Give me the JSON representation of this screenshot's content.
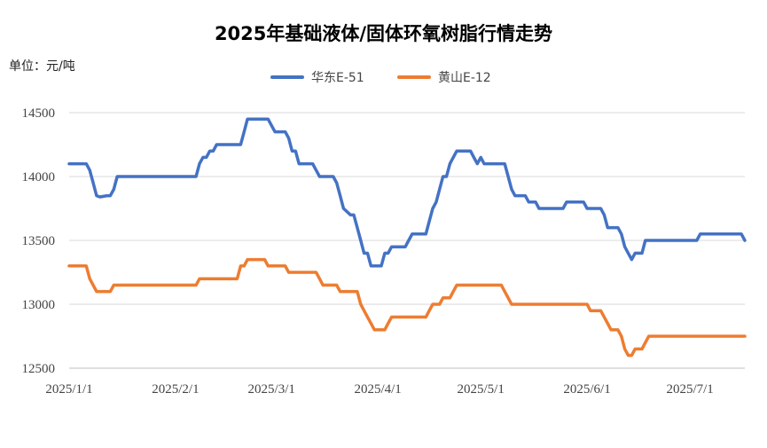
{
  "chart_data": {
    "type": "line",
    "title": "2025年基础液体/固体环氧树脂行情走势",
    "unit_label": "单位：元/吨",
    "ylim": [
      12500,
      14500
    ],
    "yticks": [
      12500,
      13000,
      13500,
      14000,
      14500
    ],
    "xlim": [
      "2025-01-01",
      "2025-07-17"
    ],
    "xticks": [
      "2025/1/1",
      "2025/2/1",
      "2025/3/1",
      "2025/4/1",
      "2025/5/1",
      "2025/6/1",
      "2025/7/1"
    ],
    "xtick_dates": [
      "2025-01-01",
      "2025-02-01",
      "2025-03-01",
      "2025-04-01",
      "2025-05-01",
      "2025-06-01",
      "2025-07-01"
    ],
    "grid": "horizontal",
    "legend_position": "top",
    "series": [
      {
        "name": "华东E-51",
        "color": "#4472C4",
        "points": [
          [
            "2025-01-01",
            14100
          ],
          [
            "2025-01-06",
            14100
          ],
          [
            "2025-01-07",
            14050
          ],
          [
            "2025-01-08",
            13950
          ],
          [
            "2025-01-09",
            13850
          ],
          [
            "2025-01-10",
            13840
          ],
          [
            "2025-01-12",
            13850
          ],
          [
            "2025-01-13",
            13850
          ],
          [
            "2025-01-14",
            13900
          ],
          [
            "2025-01-15",
            14000
          ],
          [
            "2025-01-20",
            14000
          ],
          [
            "2025-02-01",
            14000
          ],
          [
            "2025-02-06",
            14000
          ],
          [
            "2025-02-07",
            14000
          ],
          [
            "2025-02-08",
            14100
          ],
          [
            "2025-02-09",
            14150
          ],
          [
            "2025-02-10",
            14150
          ],
          [
            "2025-02-11",
            14200
          ],
          [
            "2025-02-12",
            14200
          ],
          [
            "2025-02-13",
            14250
          ],
          [
            "2025-02-20",
            14250
          ],
          [
            "2025-02-21",
            14350
          ],
          [
            "2025-02-22",
            14450
          ],
          [
            "2025-02-28",
            14450
          ],
          [
            "2025-03-01",
            14400
          ],
          [
            "2025-03-02",
            14350
          ],
          [
            "2025-03-05",
            14350
          ],
          [
            "2025-03-06",
            14300
          ],
          [
            "2025-03-07",
            14200
          ],
          [
            "2025-03-08",
            14200
          ],
          [
            "2025-03-09",
            14100
          ],
          [
            "2025-03-13",
            14100
          ],
          [
            "2025-03-14",
            14050
          ],
          [
            "2025-03-15",
            14000
          ],
          [
            "2025-03-19",
            14000
          ],
          [
            "2025-03-20",
            13950
          ],
          [
            "2025-03-21",
            13850
          ],
          [
            "2025-03-22",
            13750
          ],
          [
            "2025-03-24",
            13700
          ],
          [
            "2025-03-25",
            13700
          ],
          [
            "2025-03-26",
            13600
          ],
          [
            "2025-03-27",
            13500
          ],
          [
            "2025-03-28",
            13400
          ],
          [
            "2025-03-29",
            13400
          ],
          [
            "2025-03-30",
            13300
          ],
          [
            "2025-04-01",
            13300
          ],
          [
            "2025-04-02",
            13300
          ],
          [
            "2025-04-03",
            13400
          ],
          [
            "2025-04-04",
            13400
          ],
          [
            "2025-04-05",
            13450
          ],
          [
            "2025-04-09",
            13450
          ],
          [
            "2025-04-10",
            13500
          ],
          [
            "2025-04-11",
            13550
          ],
          [
            "2025-04-15",
            13550
          ],
          [
            "2025-04-16",
            13650
          ],
          [
            "2025-04-17",
            13750
          ],
          [
            "2025-04-18",
            13800
          ],
          [
            "2025-04-19",
            13900
          ],
          [
            "2025-04-20",
            14000
          ],
          [
            "2025-04-21",
            14000
          ],
          [
            "2025-04-22",
            14100
          ],
          [
            "2025-04-23",
            14150
          ],
          [
            "2025-04-24",
            14200
          ],
          [
            "2025-04-28",
            14200
          ],
          [
            "2025-04-29",
            14150
          ],
          [
            "2025-04-30",
            14100
          ],
          [
            "2025-05-01",
            14150
          ],
          [
            "2025-05-02",
            14100
          ],
          [
            "2025-05-08",
            14100
          ],
          [
            "2025-05-09",
            14000
          ],
          [
            "2025-05-10",
            13900
          ],
          [
            "2025-05-11",
            13850
          ],
          [
            "2025-05-14",
            13850
          ],
          [
            "2025-05-15",
            13800
          ],
          [
            "2025-05-17",
            13800
          ],
          [
            "2025-05-18",
            13750
          ],
          [
            "2025-05-25",
            13750
          ],
          [
            "2025-05-26",
            13800
          ],
          [
            "2025-05-31",
            13800
          ],
          [
            "2025-06-01",
            13750
          ],
          [
            "2025-06-05",
            13750
          ],
          [
            "2025-06-06",
            13700
          ],
          [
            "2025-06-07",
            13600
          ],
          [
            "2025-06-10",
            13600
          ],
          [
            "2025-06-11",
            13550
          ],
          [
            "2025-06-12",
            13450
          ],
          [
            "2025-06-13",
            13400
          ],
          [
            "2025-06-14",
            13350
          ],
          [
            "2025-06-15",
            13400
          ],
          [
            "2025-06-17",
            13400
          ],
          [
            "2025-06-18",
            13500
          ],
          [
            "2025-07-03",
            13500
          ],
          [
            "2025-07-04",
            13550
          ],
          [
            "2025-07-16",
            13550
          ],
          [
            "2025-07-17",
            13500
          ]
        ]
      },
      {
        "name": "黄山E-12",
        "color": "#ED7D31",
        "points": [
          [
            "2025-01-01",
            13300
          ],
          [
            "2025-01-06",
            13300
          ],
          [
            "2025-01-07",
            13200
          ],
          [
            "2025-01-08",
            13150
          ],
          [
            "2025-01-09",
            13100
          ],
          [
            "2025-01-13",
            13100
          ],
          [
            "2025-01-14",
            13150
          ],
          [
            "2025-02-06",
            13150
          ],
          [
            "2025-02-07",
            13150
          ],
          [
            "2025-02-08",
            13200
          ],
          [
            "2025-02-19",
            13200
          ],
          [
            "2025-02-20",
            13300
          ],
          [
            "2025-02-21",
            13300
          ],
          [
            "2025-02-22",
            13350
          ],
          [
            "2025-02-27",
            13350
          ],
          [
            "2025-02-28",
            13300
          ],
          [
            "2025-03-05",
            13300
          ],
          [
            "2025-03-06",
            13250
          ],
          [
            "2025-03-14",
            13250
          ],
          [
            "2025-03-15",
            13200
          ],
          [
            "2025-03-16",
            13150
          ],
          [
            "2025-03-20",
            13150
          ],
          [
            "2025-03-21",
            13100
          ],
          [
            "2025-03-26",
            13100
          ],
          [
            "2025-03-27",
            13000
          ],
          [
            "2025-03-28",
            12950
          ],
          [
            "2025-03-29",
            12900
          ],
          [
            "2025-03-30",
            12850
          ],
          [
            "2025-03-31",
            12800
          ],
          [
            "2025-04-03",
            12800
          ],
          [
            "2025-04-04",
            12850
          ],
          [
            "2025-04-05",
            12900
          ],
          [
            "2025-04-15",
            12900
          ],
          [
            "2025-04-16",
            12950
          ],
          [
            "2025-04-17",
            13000
          ],
          [
            "2025-04-19",
            13000
          ],
          [
            "2025-04-20",
            13050
          ],
          [
            "2025-04-22",
            13050
          ],
          [
            "2025-04-23",
            13100
          ],
          [
            "2025-04-24",
            13150
          ],
          [
            "2025-05-07",
            13150
          ],
          [
            "2025-05-08",
            13100
          ],
          [
            "2025-05-09",
            13050
          ],
          [
            "2025-05-10",
            13000
          ],
          [
            "2025-05-31",
            13000
          ],
          [
            "2025-06-01",
            13000
          ],
          [
            "2025-06-02",
            12950
          ],
          [
            "2025-06-05",
            12950
          ],
          [
            "2025-06-06",
            12900
          ],
          [
            "2025-06-07",
            12850
          ],
          [
            "2025-06-08",
            12800
          ],
          [
            "2025-06-10",
            12800
          ],
          [
            "2025-06-11",
            12750
          ],
          [
            "2025-06-12",
            12650
          ],
          [
            "2025-06-13",
            12600
          ],
          [
            "2025-06-14",
            12600
          ],
          [
            "2025-06-15",
            12650
          ],
          [
            "2025-06-17",
            12650
          ],
          [
            "2025-06-18",
            12700
          ],
          [
            "2025-06-19",
            12750
          ],
          [
            "2025-07-17",
            12750
          ]
        ]
      }
    ]
  }
}
